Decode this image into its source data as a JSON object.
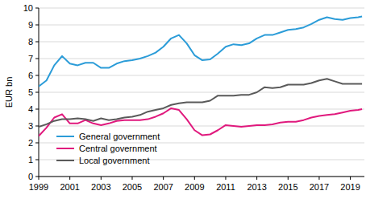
{
  "chart_data": {
    "type": "line",
    "y_label": "EUR bn",
    "x": [
      1999,
      1999.5,
      2000,
      2000.5,
      2001,
      2001.5,
      2002,
      2002.5,
      2003,
      2003.5,
      2004,
      2004.5,
      2005,
      2005.5,
      2006,
      2006.5,
      2007,
      2007.5,
      2008,
      2008.5,
      2009,
      2009.5,
      2010,
      2010.5,
      2011,
      2011.5,
      2012,
      2012.5,
      2013,
      2013.5,
      2014,
      2014.5,
      2015,
      2015.5,
      2016,
      2016.5,
      2017,
      2017.5,
      2018,
      2018.5,
      2019,
      2019.5,
      2019.75
    ],
    "series": [
      {
        "name": "General government",
        "color": "#2b9cd8",
        "values": [
          5.35,
          5.7,
          6.6,
          7.15,
          6.7,
          6.6,
          6.75,
          6.75,
          6.45,
          6.45,
          6.7,
          6.85,
          6.9,
          7.0,
          7.15,
          7.35,
          7.7,
          8.2,
          8.4,
          7.9,
          7.2,
          6.9,
          6.95,
          7.3,
          7.7,
          7.85,
          7.8,
          7.9,
          8.2,
          8.4,
          8.4,
          8.55,
          8.7,
          8.75,
          8.85,
          9.05,
          9.3,
          9.45,
          9.35,
          9.3,
          9.4,
          9.45,
          9.5
        ]
      },
      {
        "name": "Central government",
        "color": "#e0197d",
        "values": [
          2.4,
          2.9,
          3.5,
          3.7,
          3.15,
          3.15,
          3.35,
          3.15,
          3.05,
          3.15,
          3.3,
          3.35,
          3.35,
          3.35,
          3.4,
          3.55,
          3.75,
          4.05,
          3.95,
          3.4,
          2.75,
          2.45,
          2.5,
          2.75,
          3.05,
          3.0,
          2.95,
          3.0,
          3.05,
          3.05,
          3.1,
          3.2,
          3.25,
          3.25,
          3.35,
          3.5,
          3.6,
          3.65,
          3.7,
          3.8,
          3.9,
          3.95,
          4.0
        ]
      },
      {
        "name": "Local government",
        "color": "#5a5a5a",
        "values": [
          2.95,
          3.1,
          3.3,
          3.4,
          3.4,
          3.45,
          3.4,
          3.3,
          3.45,
          3.35,
          3.4,
          3.5,
          3.55,
          3.65,
          3.85,
          3.95,
          4.05,
          4.25,
          4.35,
          4.4,
          4.4,
          4.4,
          4.5,
          4.8,
          4.8,
          4.8,
          4.85,
          4.85,
          5.0,
          5.3,
          5.25,
          5.3,
          5.45,
          5.45,
          5.45,
          5.55,
          5.7,
          5.8,
          5.65,
          5.5,
          5.5,
          5.5,
          5.5
        ]
      }
    ],
    "xlim": [
      1999,
      2019.9
    ],
    "xticks": [
      1999,
      2001,
      2003,
      2005,
      2007,
      2009,
      2011,
      2013,
      2015,
      2017,
      2019
    ],
    "ylim": [
      0,
      10
    ],
    "yticks": [
      0,
      1,
      2,
      3,
      4,
      5,
      6,
      7,
      8,
      9,
      10
    ],
    "grid": true,
    "legend": "lower left"
  }
}
